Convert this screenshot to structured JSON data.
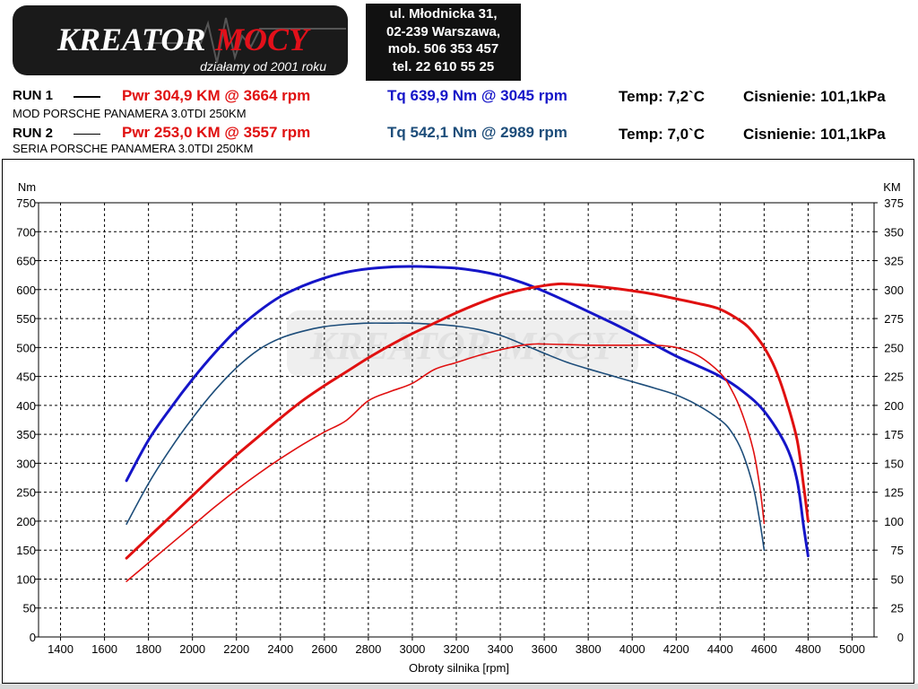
{
  "logo": {
    "text_part1": "KREATOR",
    "text_part2": "MOCY",
    "slogan": "działamy od 2001 roku",
    "colors": {
      "background": "#1a1a1a",
      "text1": "#ffffff",
      "text2": "#e3101a"
    }
  },
  "contact": {
    "address_line1": "ul. Młodnicka 31,",
    "address_line2": "02-239  Warszawa,",
    "mobile": "mob.  506 353 457",
    "phone": "tel.  22 610 55 25"
  },
  "runs": [
    {
      "label": "RUN 1",
      "description": "MOD PORSCHE PANAMERA  3.0TDI 250KM",
      "power": "Pwr  304,9 KM @ 3664 rpm",
      "torque": "Tq 639,9 Nm @ 3045 rpm",
      "temp": "Temp: 7,2`C",
      "pressure": "Cisnienie: 101,1kPa",
      "power_color": "#e01010",
      "torque_color": "#1515c8"
    },
    {
      "label": "RUN 2",
      "description": "SERIA PORSCHE PANAMERA  3.0TDI 250KM",
      "power": "Pwr  253,0 KM @ 3557 rpm",
      "torque": "Tq 542,1 Nm @ 2989 rpm",
      "temp": "Temp: 7,0`C",
      "pressure": "Cisnienie: 101,1kPa",
      "power_color": "#e01010",
      "torque_color": "#1d4d7a"
    }
  ],
  "chart_data": {
    "type": "line",
    "xlabel": "Obroty silnika [rpm]",
    "ylabel_left": "Nm",
    "ylabel_right": "KM",
    "xlim": [
      1300,
      5100
    ],
    "ylim_left": [
      0,
      750
    ],
    "ylim_right": [
      0,
      375
    ],
    "x_ticks": [
      "1400",
      "1600",
      "1800",
      "2000",
      "2200",
      "2400",
      "2600",
      "2800",
      "3000",
      "3200",
      "3400",
      "3600",
      "3800",
      "4000",
      "4200",
      "4400",
      "4600",
      "4800",
      "5000"
    ],
    "y_ticks_left": [
      "0",
      "50",
      "100",
      "150",
      "200",
      "250",
      "300",
      "350",
      "400",
      "450",
      "500",
      "550",
      "600",
      "650",
      "700",
      "750"
    ],
    "y_ticks_right": [
      "0",
      "25",
      "50",
      "75",
      "100",
      "125",
      "150",
      "175",
      "200",
      "225",
      "250",
      "275",
      "300",
      "325",
      "350",
      "375"
    ],
    "grid": true,
    "watermark": "KREATOR MOCY",
    "series": [
      {
        "name": "Tq RUN 1",
        "axis": "left",
        "color": "#1515c8",
        "width": 3,
        "x": [
          1700,
          1800,
          1900,
          2000,
          2100,
          2200,
          2300,
          2400,
          2500,
          2600,
          2700,
          2800,
          2900,
          3000,
          3045,
          3100,
          3200,
          3300,
          3400,
          3500,
          3600,
          3700,
          3800,
          3900,
          4000,
          4100,
          4200,
          4300,
          4400,
          4500,
          4600,
          4700,
          4750,
          4780,
          4800
        ],
        "y": [
          270,
          340,
          395,
          445,
          490,
          530,
          562,
          588,
          606,
          620,
          630,
          636,
          639,
          640,
          639.9,
          639,
          637,
          632,
          624,
          612,
          597,
          580,
          562,
          544,
          525,
          505,
          485,
          468,
          450,
          425,
          390,
          330,
          270,
          190,
          140
        ]
      },
      {
        "name": "Tq RUN 2",
        "axis": "left",
        "color": "#1d4d7a",
        "width": 1.6,
        "x": [
          1700,
          1800,
          1900,
          2000,
          2100,
          2200,
          2300,
          2400,
          2500,
          2600,
          2700,
          2800,
          2900,
          2989,
          3100,
          3200,
          3300,
          3400,
          3500,
          3600,
          3700,
          3800,
          3900,
          4000,
          4100,
          4200,
          4300,
          4400,
          4450,
          4500,
          4550,
          4580,
          4600
        ],
        "y": [
          195,
          265,
          325,
          378,
          425,
          465,
          496,
          516,
          528,
          536,
          540,
          542,
          542,
          542.1,
          540,
          537,
          531,
          521,
          506,
          490,
          475,
          463,
          452,
          441,
          430,
          418,
          400,
          375,
          355,
          320,
          260,
          200,
          150
        ]
      },
      {
        "name": "Pwr RUN 1",
        "axis": "right",
        "color": "#e01010",
        "width": 3,
        "x": [
          1700,
          1800,
          1900,
          2000,
          2100,
          2200,
          2300,
          2400,
          2500,
          2600,
          2700,
          2800,
          2900,
          3000,
          3100,
          3200,
          3300,
          3400,
          3500,
          3600,
          3664,
          3700,
          3800,
          3900,
          4000,
          4100,
          4200,
          4300,
          4400,
          4500,
          4550,
          4600,
          4650,
          4700,
          4750,
          4780,
          4800
        ],
        "y": [
          68,
          86,
          104,
          122,
          140,
          157,
          173,
          189,
          204,
          217,
          229,
          241,
          252,
          262,
          271,
          280,
          288,
          295,
          300,
          303.5,
          304.9,
          304.8,
          303.5,
          301.5,
          299,
          296,
          292,
          288,
          283,
          272,
          263,
          250,
          232,
          205,
          170,
          130,
          100
        ]
      },
      {
        "name": "Pwr RUN 2",
        "axis": "right",
        "color": "#e01010",
        "width": 1.6,
        "x": [
          1700,
          1800,
          1900,
          2000,
          2100,
          2200,
          2300,
          2400,
          2500,
          2600,
          2700,
          2800,
          2900,
          3000,
          3100,
          3200,
          3300,
          3400,
          3500,
          3557,
          3600,
          3700,
          3800,
          3900,
          4000,
          4100,
          4200,
          4300,
          4400,
          4450,
          4500,
          4550,
          4580,
          4600
        ],
        "y": [
          48,
          64,
          80,
          96,
          112,
          127,
          141,
          154,
          166,
          177,
          187,
          204,
          212,
          219,
          231,
          237,
          243,
          248,
          252,
          253,
          253,
          252.5,
          252,
          252,
          252,
          252,
          250,
          243,
          228,
          214,
          193,
          162,
          130,
          98
        ]
      }
    ]
  }
}
